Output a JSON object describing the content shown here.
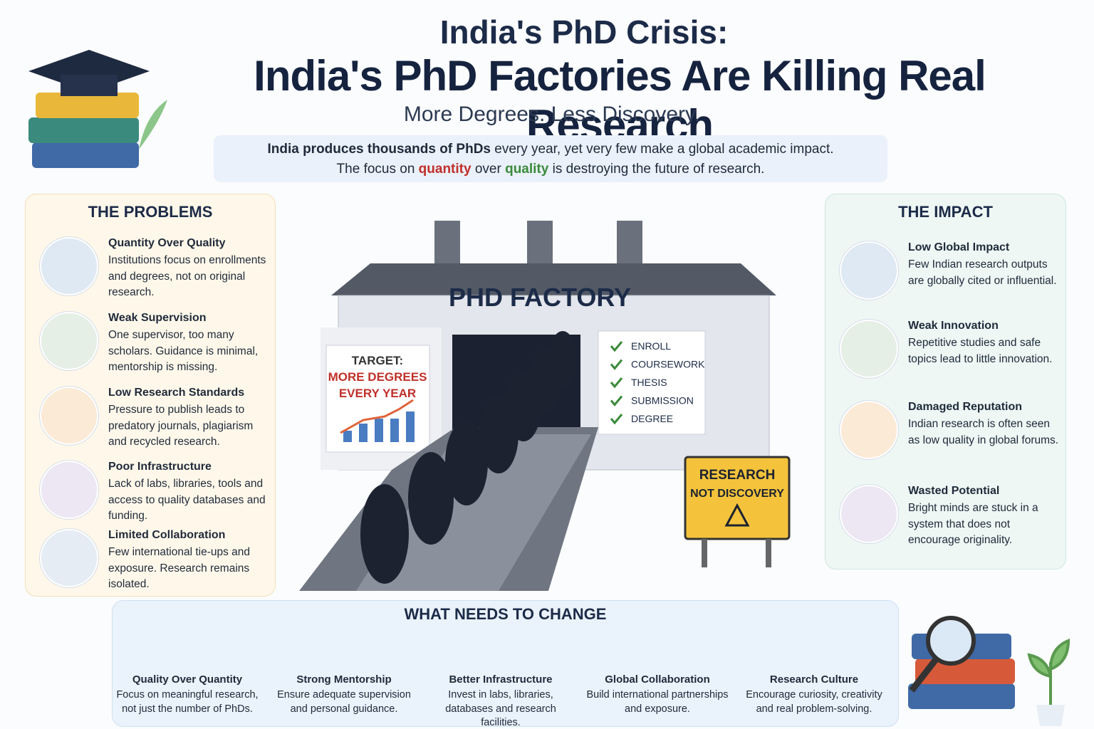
{
  "header": {
    "title_line1": "India's PhD Crisis:",
    "title_line2": "India's PhD Factories Are Killing Real Research",
    "subtitle": "More Degrees. Less Discovery.",
    "intro_line1": [
      "India produces thousands of PhDs",
      " every year, yet very few make a global academic impact."
    ],
    "intro_line2": [
      "The focus on ",
      "quantity",
      " over ",
      "quality",
      " is destroying the future of research."
    ]
  },
  "problems": {
    "heading": "THE PROBLEMS",
    "items": [
      {
        "title": "Quantity Over Quality",
        "text": "Institutions focus on enrollments and degrees, not on original research."
      },
      {
        "title": "Weak Supervision",
        "text": "One supervisor, too many scholars. Guidance is minimal, mentorship is missing."
      },
      {
        "title": "Low Research Standards",
        "text": "Pressure to publish leads to predatory journals, plagiarism and recycled research."
      },
      {
        "title": "Poor Infrastructure",
        "text": "Lack of labs, libraries, tools and access to quality databases and funding."
      },
      {
        "title": "Limited Collaboration",
        "text": "Few international tie-ups and exposure. Research remains isolated."
      }
    ]
  },
  "factory": {
    "sign": "PHD FACTORY",
    "target_label": "TARGET:",
    "target_lines": [
      "MORE DEGREES",
      "EVERY YEAR"
    ],
    "checklist": [
      "ENROLL",
      "COURSEWORK",
      "THESIS",
      "SUBMISSION",
      "DEGREE"
    ],
    "warning_lines": [
      "RESEARCH",
      "NOT DISCOVERY"
    ]
  },
  "impact": {
    "heading": "THE IMPACT",
    "items": [
      {
        "title": "Low Global Impact",
        "text": "Few Indian research outputs are globally cited or influential."
      },
      {
        "title": "Weak Innovation",
        "text": "Repetitive studies and safe topics lead to little innovation."
      },
      {
        "title": "Damaged Reputation",
        "text": "Indian research is often seen as low quality in global forums."
      },
      {
        "title": "Wasted Potential",
        "text": "Bright minds are stuck in a system that does not encourage originality."
      }
    ]
  },
  "change": {
    "heading": "WHAT NEEDS TO CHANGE",
    "items": [
      {
        "title": "Quality Over Quantity",
        "text": "Focus on meaningful research, not just the number of PhDs."
      },
      {
        "title": "Strong Mentorship",
        "text": "Ensure adequate supervision and personal guidance."
      },
      {
        "title": "Better Infrastructure",
        "text": "Invest in labs, libraries, databases and research facilities."
      },
      {
        "title": "Global Collaboration",
        "text": "Build international partnerships and exposure."
      },
      {
        "title": "Research Culture",
        "text": "Encourage curiosity, creativity and real problem-solving."
      }
    ]
  }
}
